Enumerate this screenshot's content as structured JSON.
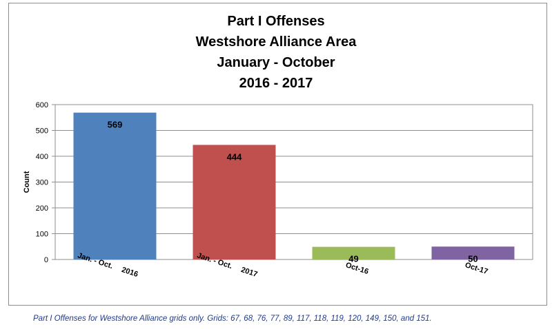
{
  "chart_data": {
    "type": "bar",
    "title_lines": [
      "Part I Offenses",
      "Westshore Alliance Area",
      "January - October",
      "2016 - 2017"
    ],
    "ylabel": "Count",
    "ylim": [
      0,
      600
    ],
    "yticks": [
      "0",
      "100",
      "200",
      "300",
      "400",
      "500",
      "600"
    ],
    "categories": [
      [
        "Jan. - Oct.",
        "2016"
      ],
      [
        "Jan. - Oct.",
        "2017"
      ],
      [
        "Oct-16"
      ],
      [
        "Oct-17"
      ]
    ],
    "values": [
      569,
      444,
      49,
      50
    ],
    "colors": [
      "#4f81bd",
      "#c0504d",
      "#9bbb59",
      "#8064a2"
    ],
    "grid": true,
    "legend": "none"
  },
  "footnote": "Part I Offenses for Westshore Alliance grids only. Grids: 67, 68, 76, 77, 89, 117, 118, 119, 120, 149, 150, and 151."
}
